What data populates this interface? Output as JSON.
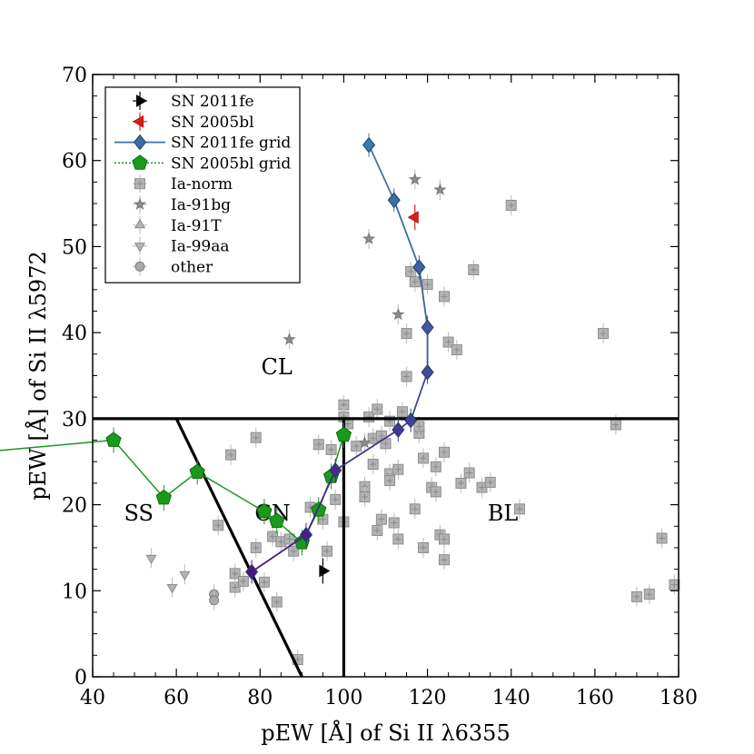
{
  "chart_data": {
    "type": "scatter",
    "title": "",
    "xlabel": "pEW [Å] of Si II λ6355",
    "ylabel": "pEW [Å] of Si II λ5972",
    "xlim": [
      40,
      180
    ],
    "ylim": [
      0,
      70
    ],
    "xticks": [
      40,
      60,
      80,
      100,
      120,
      140,
      160,
      180
    ],
    "yticks": [
      0,
      10,
      20,
      30,
      40,
      50,
      60,
      70
    ],
    "grid": false,
    "legend_position": "top-left",
    "region_labels": [
      {
        "text": "CL",
        "x": 84,
        "y": 36
      },
      {
        "text": "SS",
        "x": 51,
        "y": 19
      },
      {
        "text": "CN",
        "x": 83,
        "y": 19
      },
      {
        "text": "BL",
        "x": 138,
        "y": 19
      }
    ],
    "boundaries": [
      {
        "name": "horizontal",
        "points": [
          [
            40,
            30
          ],
          [
            180,
            30
          ]
        ]
      },
      {
        "name": "vertical",
        "points": [
          [
            100,
            0
          ],
          [
            100,
            30
          ]
        ]
      },
      {
        "name": "diagonal",
        "points": [
          [
            60,
            30
          ],
          [
            90,
            0
          ]
        ]
      }
    ],
    "series": [
      {
        "name": "SN 2011fe",
        "marker": "triangle-right",
        "color": "#000000",
        "points": [
          [
            95,
            12.3
          ]
        ]
      },
      {
        "name": "SN 2005bl",
        "marker": "triangle-left",
        "color": "#e31a1c",
        "points": [
          [
            117,
            53.4
          ]
        ]
      },
      {
        "name": "SN 2011fe grid",
        "marker": "diamond",
        "color": "#3a6ea5",
        "line": "solid",
        "points": [
          [
            78,
            12.2
          ],
          [
            91,
            16.5
          ],
          [
            98,
            24.0
          ],
          [
            113,
            28.7
          ],
          [
            116,
            29.8
          ],
          [
            120,
            35.4
          ],
          [
            120,
            40.6
          ],
          [
            118,
            47.6
          ],
          [
            112,
            55.4
          ],
          [
            106,
            61.8
          ]
        ]
      },
      {
        "name": "SN 2005bl grid",
        "marker": "pentagon",
        "color": "#1a9a1a",
        "line": "dotted",
        "points": [
          [
            45,
            27.5
          ],
          [
            57,
            20.8
          ],
          [
            65,
            23.8
          ],
          [
            81,
            19.2
          ],
          [
            84,
            18.1
          ],
          [
            90,
            15.6
          ],
          [
            94,
            19.4
          ],
          [
            97,
            23.3
          ],
          [
            100,
            28.1
          ]
        ]
      },
      {
        "name": "Ia-norm",
        "marker": "square",
        "color": "#aaaaaa",
        "points": [
          [
            70,
            17.6
          ],
          [
            73,
            25.8
          ],
          [
            74,
            10.4
          ],
          [
            74,
            12.0
          ],
          [
            76,
            11.1
          ],
          [
            79,
            15.0
          ],
          [
            81,
            11.0
          ],
          [
            79,
            27.8
          ],
          [
            83,
            16.3
          ],
          [
            84,
            8.7
          ],
          [
            85,
            15.7
          ],
          [
            87,
            16.0
          ],
          [
            88,
            14.6
          ],
          [
            89,
            2.0
          ],
          [
            92,
            19.7
          ],
          [
            94,
            27.0
          ],
          [
            95,
            18.3
          ],
          [
            96,
            14.6
          ],
          [
            97,
            26.4
          ],
          [
            98,
            20.6
          ],
          [
            100,
            18.0
          ],
          [
            100,
            31.6
          ],
          [
            100,
            30.2
          ],
          [
            101,
            29.4
          ],
          [
            103,
            26.8
          ],
          [
            105,
            22.1
          ],
          [
            105,
            20.9
          ],
          [
            106,
            30.2
          ],
          [
            107,
            27.7
          ],
          [
            107,
            24.7
          ],
          [
            108,
            31.1
          ],
          [
            108,
            17.0
          ],
          [
            109,
            18.3
          ],
          [
            109,
            28.0
          ],
          [
            110,
            27.1
          ],
          [
            111,
            29.7
          ],
          [
            111,
            23.6
          ],
          [
            111,
            22.8
          ],
          [
            112,
            17.9
          ],
          [
            113,
            16.0
          ],
          [
            113,
            24.1
          ],
          [
            114,
            30.8
          ],
          [
            115,
            34.9
          ],
          [
            115,
            39.9
          ],
          [
            116,
            47.1
          ],
          [
            117,
            45.9
          ],
          [
            117,
            19.5
          ],
          [
            118,
            28.3
          ],
          [
            118,
            29.1
          ],
          [
            119,
            25.4
          ],
          [
            119,
            15.0
          ],
          [
            120,
            45.6
          ],
          [
            121,
            22.0
          ],
          [
            122,
            21.5
          ],
          [
            122,
            24.4
          ],
          [
            123,
            16.5
          ],
          [
            124,
            44.2
          ],
          [
            124,
            16.0
          ],
          [
            124,
            13.6
          ],
          [
            124,
            26.1
          ],
          [
            125,
            38.9
          ],
          [
            127,
            38.0
          ],
          [
            128,
            22.5
          ],
          [
            130,
            23.7
          ],
          [
            131,
            47.3
          ],
          [
            133,
            22.0
          ],
          [
            135,
            22.6
          ],
          [
            140,
            54.8
          ],
          [
            142,
            19.5
          ],
          [
            162,
            39.9
          ],
          [
            165,
            29.3
          ],
          [
            170,
            9.3
          ],
          [
            173,
            9.6
          ],
          [
            176,
            16.1
          ],
          [
            179,
            10.7
          ]
        ]
      },
      {
        "name": "Ia-91bg",
        "marker": "star",
        "color": "#999999",
        "points": [
          [
            87,
            39.2
          ],
          [
            106,
            50.9
          ],
          [
            113,
            42.1
          ],
          [
            117,
            57.8
          ],
          [
            123,
            56.6
          ],
          [
            105,
            27.2
          ]
        ]
      },
      {
        "name": "Ia-91T",
        "marker": "triangle-up",
        "color": "#aaaaaa",
        "points": []
      },
      {
        "name": "Ia-99aa",
        "marker": "triangle-down",
        "color": "#aaaaaa",
        "points": [
          [
            54,
            13.8
          ],
          [
            59,
            10.4
          ],
          [
            62,
            11.9
          ]
        ]
      },
      {
        "name": "other",
        "marker": "circle",
        "color": "#999999",
        "points": [
          [
            69,
            9.6
          ],
          [
            69,
            8.9
          ]
        ]
      }
    ]
  }
}
